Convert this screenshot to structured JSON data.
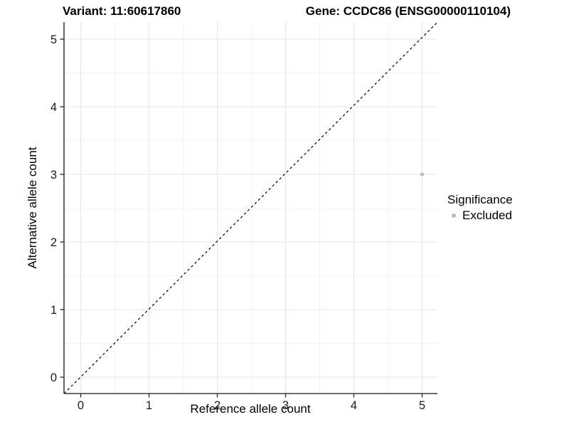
{
  "titles": {
    "variant": "Variant: 11:60617860",
    "gene": "Gene: CCDC86 (ENSG00000110104)"
  },
  "chart_data": {
    "type": "scatter",
    "xlabel": "Reference allele count",
    "ylabel": "Alternative allele count",
    "xlim": [
      -0.25,
      5.25
    ],
    "ylim": [
      -0.25,
      5.25
    ],
    "x_ticks": [
      0,
      1,
      2,
      3,
      4,
      5
    ],
    "y_ticks": [
      0,
      1,
      2,
      3,
      4,
      5
    ],
    "grid": "major and minor gridlines on, white panel background",
    "minor_grid_interval": 0.5,
    "points": [
      {
        "x": 5,
        "y": 3,
        "significance": "Excluded"
      }
    ],
    "reference_line": {
      "kind": "identity y=x",
      "style": "dashed",
      "from": [
        -0.25,
        -0.25
      ],
      "to": [
        5.25,
        5.25
      ]
    },
    "legend": {
      "title": "Significance",
      "position": "right",
      "entries": [
        {
          "label": "Excluded",
          "marker": "circle",
          "color": "#bdbdbd"
        }
      ]
    }
  },
  "colors": {
    "point": "#bdbdbd",
    "identity_line": "#000000",
    "grid_major": "#e6e6e6",
    "grid_minor": "#f3f3f3",
    "axis_line": "#3d3d3d",
    "tick_mark": "#333333",
    "tick_label": "#1a1a1a",
    "background": "#ffffff"
  }
}
